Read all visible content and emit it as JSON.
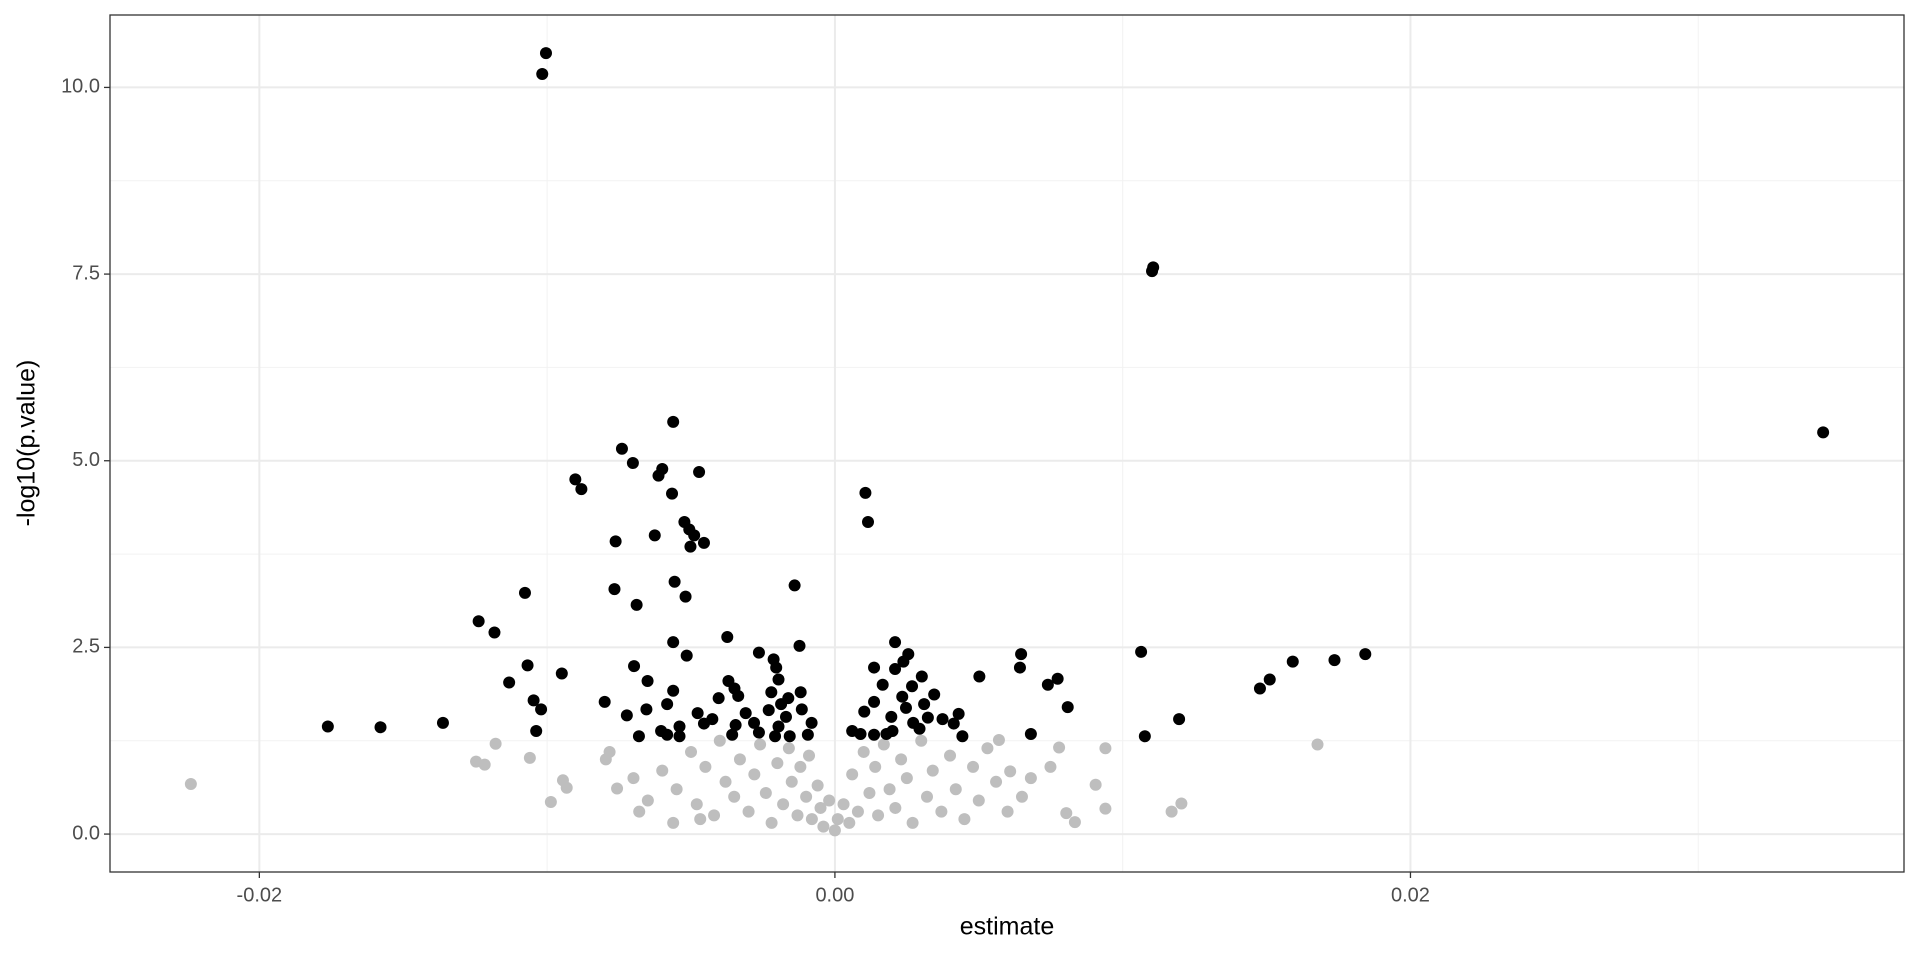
{
  "chart_data": {
    "type": "scatter",
    "x_label": "estimate",
    "y_label": "-log10(p.value)",
    "xlim": [
      -0.02519,
      0.03715
    ],
    "ylim": [
      -0.508,
      10.97
    ],
    "xticks": [
      -0.02,
      {
        "value": 0,
        "label": "0.00"
      },
      0.02
    ],
    "yticks": [
      {
        "value": 0,
        "label": "0.0"
      },
      2.5,
      {
        "value": 5,
        "label": "5.0"
      },
      7.5,
      {
        "value": 10,
        "label": "10.0"
      }
    ],
    "minor_xticks": [
      -0.01,
      0.01,
      0.03
    ],
    "minor_yticks": [
      1.25,
      3.75,
      6.25,
      8.75
    ],
    "grid": true,
    "series": [
      {
        "color": "#bebebe",
        "x": [
          -0.02238,
          -0.01179,
          -0.01247,
          -0.01217,
          -0.0106,
          -0.00987,
          -0.00945,
          -0.00932,
          -0.00783,
          -0.00796,
          -0.00757,
          0.01677,
          0.01204,
          0.0117,
          0.0094,
          0.0094,
          0.00906,
          0.00804,
          0.00834,
          0.00779,
          0.00749,
          0.00681,
          0.0057,
          0.00609,
          -0.00562,
          -0.00468,
          -0.006,
          -0.0055,
          -0.005,
          -0.0048,
          -0.0045,
          -0.0042,
          -0.004,
          -0.0038,
          -0.0035,
          -0.0033,
          -0.003,
          -0.0028,
          -0.0026,
          -0.0024,
          -0.0022,
          -0.002,
          -0.0018,
          -0.0016,
          -0.0015,
          -0.0013,
          -0.0012,
          -0.001,
          -0.0009,
          -0.0008,
          -0.0006,
          -0.0005,
          -0.0004,
          -0.0002,
          0,
          0.0001,
          0.0003,
          0.0005,
          0.0006,
          0.0008,
          0.001,
          0.0012,
          0.0014,
          0.0015,
          0.0017,
          0.0019,
          0.0021,
          0.0023,
          0.0025,
          0.0027,
          0.003,
          0.0032,
          0.0034,
          0.0037,
          0.004,
          0.0042,
          0.0045,
          0.0048,
          0.005,
          0.0053,
          0.0056,
          0.006,
          0.0065,
          -0.0065,
          -0.007,
          -0.0068
        ],
        "y": [
          0.67,
          1.21,
          0.97,
          0.93,
          1.02,
          0.43,
          0.72,
          0.62,
          1.1,
          1.0,
          0.61,
          1.2,
          0.41,
          0.3,
          1.15,
          0.34,
          0.66,
          0.28,
          0.16,
          1.16,
          0.9,
          0.75,
          1.26,
          0.84,
          0.15,
          0.2,
          0.85,
          0.6,
          1.1,
          0.4,
          0.9,
          0.25,
          1.25,
          0.7,
          0.5,
          1.0,
          0.3,
          0.8,
          1.2,
          0.55,
          0.15,
          0.95,
          0.4,
          1.15,
          0.7,
          0.25,
          0.9,
          0.5,
          1.05,
          0.2,
          0.65,
          0.35,
          0.1,
          0.45,
          0.05,
          0.2,
          0.4,
          0.15,
          0.8,
          0.3,
          1.1,
          0.55,
          0.9,
          0.25,
          1.2,
          0.6,
          0.35,
          1.0,
          0.75,
          0.15,
          1.25,
          0.5,
          0.85,
          0.3,
          1.05,
          0.6,
          0.2,
          0.9,
          0.45,
          1.15,
          0.7,
          0.3,
          0.5,
          0.45,
          0.75,
          0.3
        ]
      },
      {
        "color": "#000000",
        "x": [
          -0.01004,
          -0.01017,
          0.01106,
          0.01102,
          0.03434,
          -0.00562,
          -0.0074,
          -0.00702,
          -0.006,
          -0.00613,
          -0.00472,
          -0.00902,
          -0.00881,
          -0.00566,
          0.00106,
          0.00115,
          -0.00523,
          -0.00506,
          -0.00489,
          -0.00626,
          -0.00455,
          -0.00502,
          -0.00762,
          -0.00557,
          -0.0014,
          -0.00766,
          -0.01077,
          -0.00519,
          -0.00689,
          -0.01238,
          -0.01183,
          -0.00374,
          -0.00562,
          -0.00123,
          0.00209,
          0.01064,
          0.01843,
          0.00647,
          0.00255,
          -0.00515,
          -0.00264,
          -0.00213,
          0.01736,
          0.01591,
          -0.01068,
          -0.00698,
          0.00136,
          0.00643,
          0.00209,
          -0.00949,
          0.00302,
          0.00502,
          0.01511,
          0.00774,
          -0.0037,
          -0.00651,
          -0.01132,
          0.0074,
          0.00166,
          0.01477,
          -0.00349,
          -0.00562,
          -0.00119,
          0.00345,
          -0.00336,
          0.00234,
          -0.00404,
          -0.01047,
          -0.008,
          0.00136,
          -0.00583,
          0.00809,
          -0.01021,
          -0.00655,
          -0.00115,
          0.00102,
          -0.00477,
          -0.0031,
          -0.00723,
          0.01196,
          -0.00426,
          0.0043,
          0.00196,
          0.00323,
          0.00374,
          -0.01362,
          -0.00281,
          -0.00081,
          0.00272,
          -0.00455,
          0.00413,
          -0.01762,
          -0.01579,
          -0.00345,
          -0.00196,
          -0.0054,
          0.00294,
          -0.00604,
          0.0006,
          -0.01038,
          0.002,
          -0.00264,
          0.00681,
          0.00089,
          -0.00583,
          -0.00357,
          -0.00094,
          0.00136,
          0.00179,
          0.00443,
          0.01077,
          -0.00681,
          -0.0054,
          -0.00208,
          -0.00157,
          -0.00204,
          -0.00196,
          -0.00221,
          -0.00187,
          -0.0017,
          -0.0023,
          -0.00162,
          0.00238,
          0.00268,
          0.00247,
          0.0031
        ],
        "y": [
          10.46,
          10.18,
          7.59,
          7.54,
          5.38,
          5.52,
          5.16,
          4.97,
          4.89,
          4.8,
          4.85,
          4.75,
          4.62,
          4.56,
          4.57,
          4.18,
          4.18,
          4.08,
          4.0,
          4.0,
          3.9,
          3.85,
          3.92,
          3.38,
          3.33,
          3.28,
          3.23,
          3.18,
          3.07,
          2.85,
          2.7,
          2.64,
          2.57,
          2.52,
          2.57,
          2.44,
          2.41,
          2.41,
          2.41,
          2.39,
          2.43,
          2.34,
          2.33,
          2.31,
          2.26,
          2.25,
          2.23,
          2.23,
          2.21,
          2.15,
          2.11,
          2.11,
          2.07,
          2.08,
          2.05,
          2.05,
          2.03,
          2.0,
          2.0,
          1.95,
          1.95,
          1.92,
          1.9,
          1.87,
          1.85,
          1.84,
          1.82,
          1.79,
          1.77,
          1.77,
          1.74,
          1.7,
          1.67,
          1.67,
          1.67,
          1.64,
          1.62,
          1.62,
          1.59,
          1.54,
          1.54,
          1.61,
          1.57,
          1.56,
          1.54,
          1.49,
          1.49,
          1.49,
          1.49,
          1.48,
          1.48,
          1.44,
          1.43,
          1.46,
          1.44,
          1.44,
          1.41,
          1.38,
          1.38,
          1.38,
          1.38,
          1.36,
          1.34,
          1.34,
          1.33,
          1.33,
          1.33,
          1.33,
          1.34,
          1.31,
          1.31,
          1.31,
          1.31,
          1.31,
          1.31,
          2.23,
          2.07,
          1.9,
          1.74,
          1.57,
          1.66,
          1.82,
          2.31,
          1.98,
          1.69,
          1.74
        ]
      }
    ]
  }
}
